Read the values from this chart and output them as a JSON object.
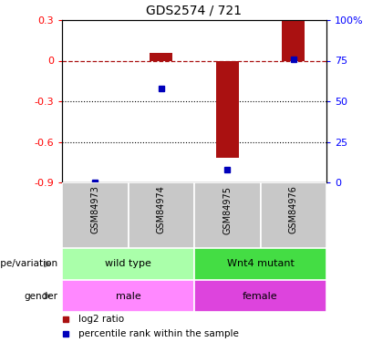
{
  "title": "GDS2574 / 721",
  "samples": [
    "GSM84973",
    "GSM84974",
    "GSM84975",
    "GSM84976"
  ],
  "log2_ratios": [
    0.0,
    0.06,
    -0.72,
    0.29
  ],
  "percentile_ranks": [
    0.0,
    0.58,
    0.08,
    0.76
  ],
  "bar_color": "#aa1111",
  "dot_color": "#0000bb",
  "ylim_left": [
    -0.9,
    0.3
  ],
  "ylim_right": [
    0,
    100
  ],
  "yticks_left": [
    -0.9,
    -0.6,
    -0.3,
    0.0,
    0.3
  ],
  "yticks_right": [
    0,
    25,
    50,
    75,
    100
  ],
  "ytick_labels_left": [
    "-0.9",
    "-0.6",
    "-0.3",
    "0",
    "0.3"
  ],
  "ytick_labels_right": [
    "0",
    "25",
    "50",
    "75",
    "100%"
  ],
  "dotted_lines": [
    -0.3,
    -0.6
  ],
  "genotype_groups": [
    {
      "label": "wild type",
      "samples": [
        0,
        1
      ],
      "color": "#aaffaa"
    },
    {
      "label": "Wnt4 mutant",
      "samples": [
        2,
        3
      ],
      "color": "#44dd44"
    }
  ],
  "gender_groups": [
    {
      "label": "male",
      "samples": [
        0,
        1
      ],
      "color": "#ff88ff"
    },
    {
      "label": "female",
      "samples": [
        2,
        3
      ],
      "color": "#dd44dd"
    }
  ],
  "row_labels": [
    "genotype/variation",
    "gender"
  ],
  "legend_items": [
    {
      "label": "log2 ratio",
      "color": "#aa1111"
    },
    {
      "label": "percentile rank within the sample",
      "color": "#0000bb"
    }
  ],
  "bar_width": 0.35,
  "sample_gray": "#c8c8c8",
  "spine_color": "#000000"
}
